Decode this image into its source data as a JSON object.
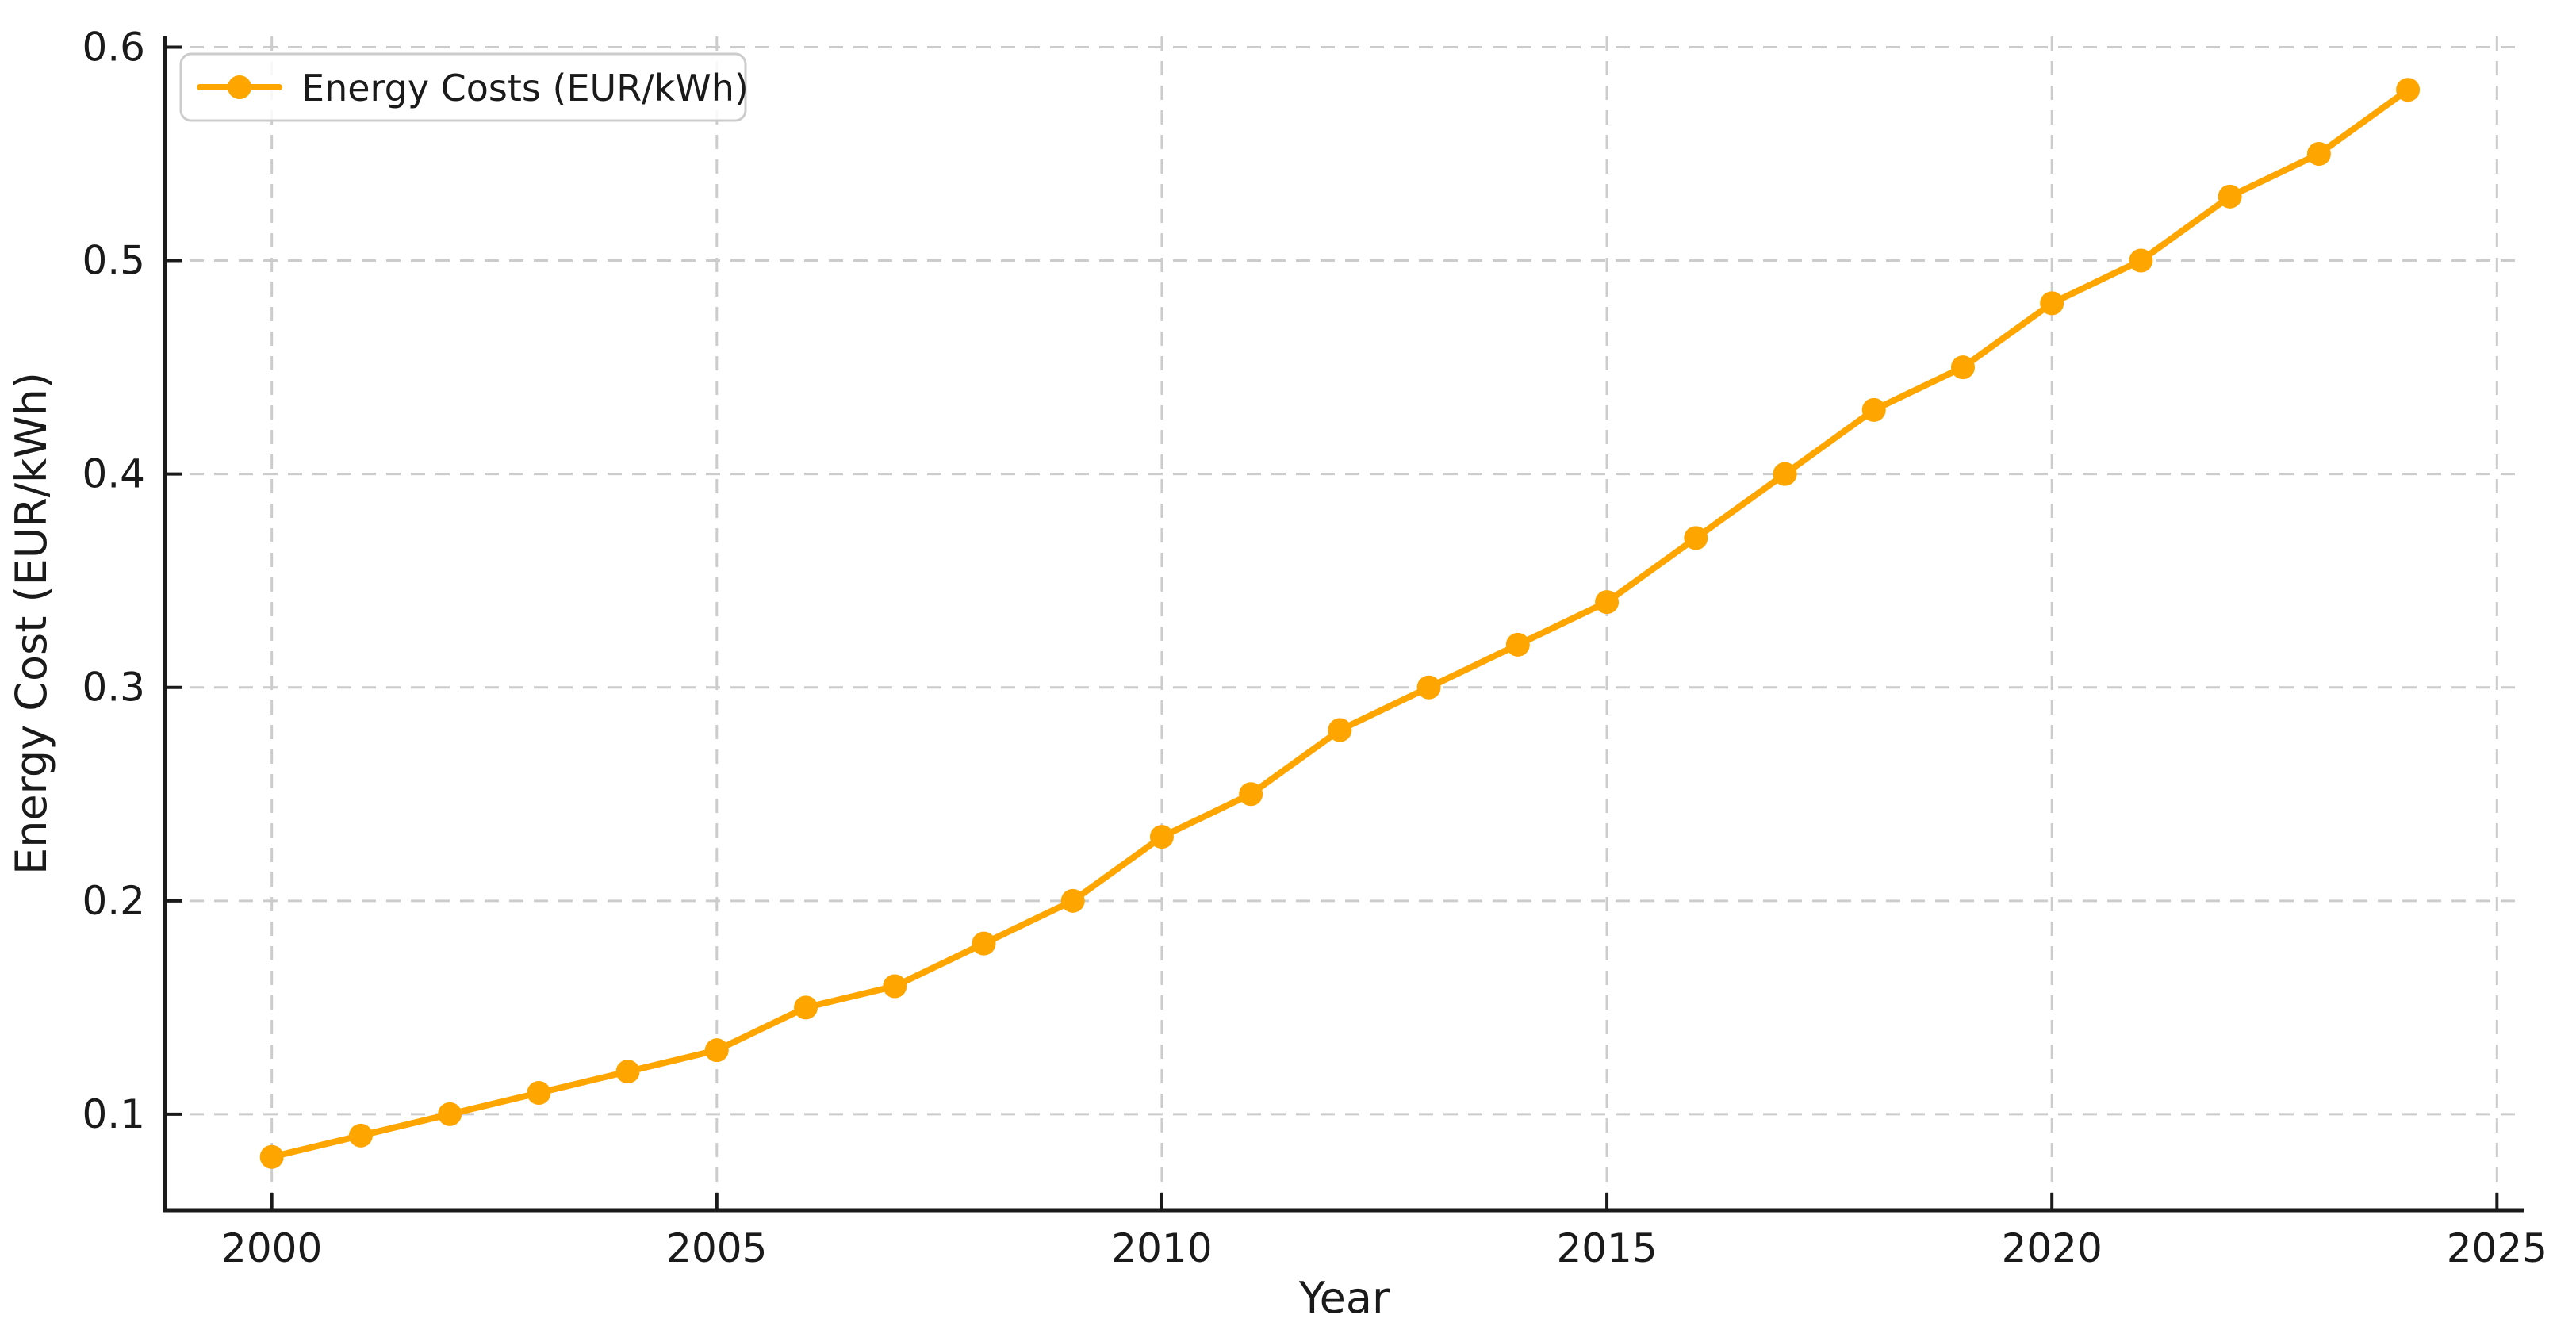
{
  "figure": {
    "background_color": "#ffffff",
    "text_color": "#1a1a1a",
    "grid_color": "#cccccc",
    "spine_color": "#1a1a1a"
  },
  "legend": {
    "label": "Energy Costs (EUR/kWh)",
    "position": "upper-left",
    "border_color": "#cccccc",
    "background_color": "#ffffff"
  },
  "chart_data": {
    "type": "line",
    "title": "",
    "xlabel": "Year",
    "ylabel": "Energy Cost (EUR/kWh)",
    "x": [
      2000,
      2001,
      2002,
      2003,
      2004,
      2005,
      2006,
      2007,
      2008,
      2009,
      2010,
      2011,
      2012,
      2013,
      2014,
      2015,
      2016,
      2017,
      2018,
      2019,
      2020,
      2021,
      2022,
      2023,
      2024
    ],
    "series": [
      {
        "name": "Energy Costs (EUR/kWh)",
        "color": "#FFA500",
        "marker": "circle",
        "values": [
          0.08,
          0.09,
          0.1,
          0.11,
          0.12,
          0.13,
          0.15,
          0.16,
          0.18,
          0.2,
          0.23,
          0.25,
          0.28,
          0.3,
          0.32,
          0.34,
          0.37,
          0.4,
          0.43,
          0.45,
          0.48,
          0.5,
          0.53,
          0.55,
          0.58
        ]
      }
    ],
    "xticks": [
      2000,
      2005,
      2010,
      2015,
      2020,
      2025
    ],
    "xtick_labels": [
      "2000",
      "2005",
      "2010",
      "2015",
      "2020",
      "2025"
    ],
    "yticks": [
      0.1,
      0.2,
      0.3,
      0.4,
      0.5,
      0.6
    ],
    "ytick_labels": [
      "0.1",
      "0.2",
      "0.3",
      "0.4",
      "0.5",
      "0.6"
    ],
    "xlim": [
      1998.8,
      2025.3
    ],
    "ylim": [
      0.055,
      0.605
    ],
    "grid": true,
    "grid_style": "dashed",
    "tick_direction": "in",
    "legend_position": "upper left"
  }
}
